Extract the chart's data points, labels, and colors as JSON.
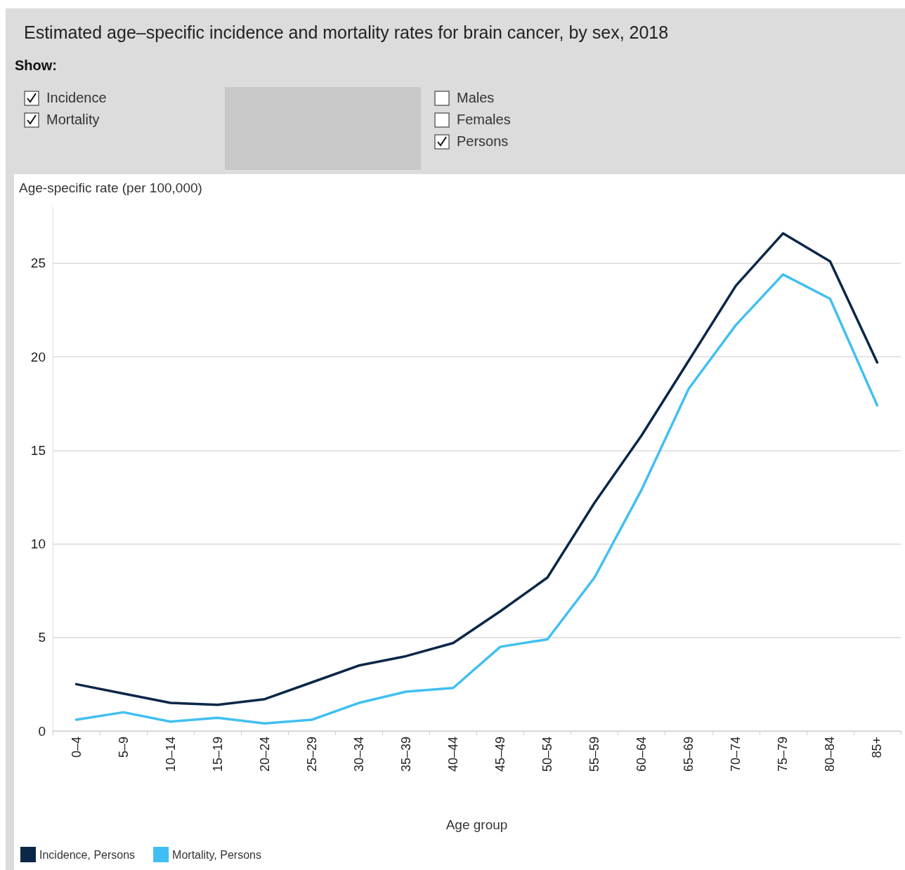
{
  "chart_data": {
    "type": "line",
    "title": "Estimated age–specific incidence and mortality rates for brain cancer, by sex, 2018",
    "annotations": [
      "Show:",
      "Incidence",
      "Mortality",
      "Males",
      "Females",
      "Persons"
    ],
    "xlabel": "Age group",
    "ylabel": "Age-specific rate (per 100,000)",
    "categories": [
      "0–4",
      "5–9",
      "10–14",
      "15–19",
      "20–24",
      "25–29",
      "30–34",
      "35–39",
      "40–44",
      "45–49",
      "50–54",
      "55–59",
      "60–64",
      "65–69",
      "70–74",
      "75–79",
      "80–84",
      "85+"
    ],
    "series": [
      {
        "name": "Incidence, Persons",
        "color": "#0b2747",
        "values": [
          2.5,
          2.0,
          1.5,
          1.4,
          1.7,
          2.6,
          3.5,
          4.0,
          4.7,
          6.4,
          8.2,
          12.2,
          15.8,
          19.8,
          23.8,
          26.6,
          25.1,
          19.7
        ]
      },
      {
        "name": "Mortality, Persons",
        "color": "#41bff2",
        "values": [
          0.6,
          1.0,
          0.5,
          0.7,
          0.4,
          0.6,
          1.5,
          2.1,
          2.3,
          4.5,
          4.9,
          8.2,
          12.9,
          18.3,
          21.7,
          24.4,
          23.1,
          17.4
        ]
      }
    ],
    "ylim": [
      0,
      28
    ],
    "yticks": [
      0,
      5,
      10,
      15,
      20,
      25
    ],
    "grid": "y",
    "legend": "bottom left",
    "marker": "none",
    "line_style": "solid"
  }
}
